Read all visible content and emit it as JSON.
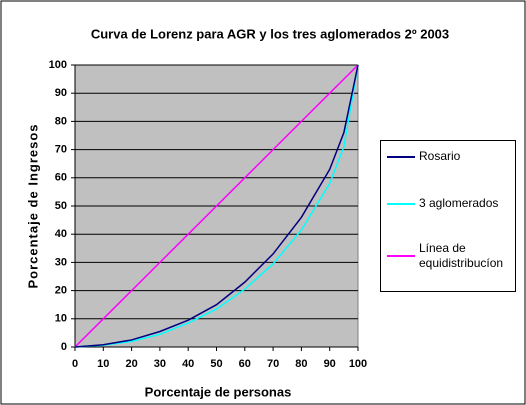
{
  "chart_data": {
    "type": "line",
    "title": "Curva de Lorenz para AGR y los tres aglomerados 2º 2003",
    "x_label": "Porcentaje de personas",
    "y_label": "Porcentaje de Ingresos",
    "x": [
      0,
      10,
      20,
      30,
      40,
      50,
      60,
      70,
      80,
      90,
      95,
      100
    ],
    "series": [
      {
        "name": "Rosario",
        "color": "#000080",
        "values": [
          0,
          0.8,
          2.5,
          5.5,
          9.5,
          15,
          23,
          33,
          46,
          63,
          76,
          100
        ]
      },
      {
        "name": "3 aglomerados",
        "color": "#00ffff",
        "values": [
          0,
          0.6,
          2,
          4.5,
          8.5,
          13.5,
          20.5,
          29.5,
          41.5,
          58,
          71,
          100
        ]
      },
      {
        "name": "Línea de equidistribucíon",
        "color": "#ff00ff",
        "values": [
          0,
          10,
          20,
          30,
          40,
          50,
          60,
          70,
          80,
          90,
          95,
          100
        ]
      }
    ],
    "xlim": [
      0,
      100
    ],
    "xticks": [
      0,
      10,
      20,
      30,
      40,
      50,
      60,
      70,
      80,
      90,
      100
    ],
    "ylim": [
      0,
      100
    ],
    "yticks": [
      0,
      10,
      20,
      30,
      40,
      50,
      60,
      70,
      80,
      90,
      100
    ],
    "grid": true,
    "legend": "right"
  }
}
